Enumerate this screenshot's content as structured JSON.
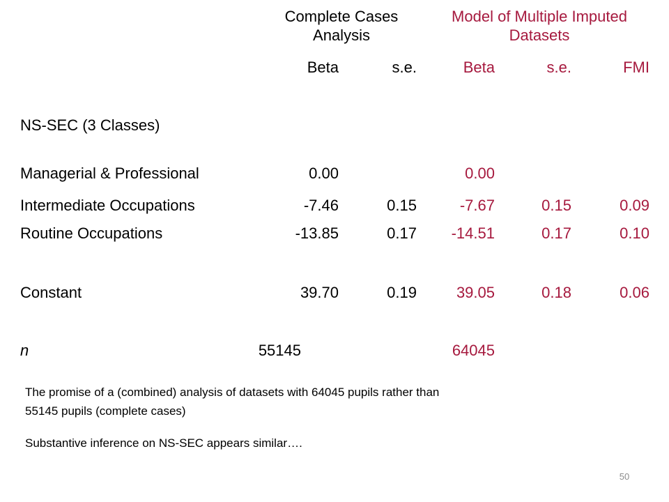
{
  "colors": {
    "text": "#000000",
    "accent": "#a6193e",
    "page_number": "#8c8c8c"
  },
  "header": {
    "group1_line1": "Complete Cases",
    "group1_line2": "Analysis",
    "group2_line1": "Model of Multiple Imputed",
    "group2_line2": "Datasets",
    "col_beta_cc": "Beta",
    "col_se_cc": "s.e.",
    "col_beta_mi": "Beta",
    "col_se_mi": "s.e.",
    "col_fmi": "FMI"
  },
  "section_label": "NS-SEC (3 Classes)",
  "rows": [
    {
      "label": "Managerial & Professional",
      "beta_cc": "0.00",
      "se_cc": "",
      "beta_mi": "0.00",
      "se_mi": "",
      "fmi": ""
    },
    {
      "label": "Intermediate Occupations",
      "beta_cc": "-7.46",
      "se_cc": "0.15",
      "beta_mi": "-7.67",
      "se_mi": "0.15",
      "fmi": "0.09"
    },
    {
      "label": "Routine Occupations",
      "beta_cc": "-13.85",
      "se_cc": "0.17",
      "beta_mi": "-14.51",
      "se_mi": "0.17",
      "fmi": "0.10"
    },
    {
      "label": "Constant",
      "beta_cc": "39.70",
      "se_cc": "0.19",
      "beta_mi": "39.05",
      "se_mi": "0.18",
      "fmi": "0.06"
    }
  ],
  "n_row": {
    "label": "n",
    "cc": "55145",
    "mi": "64045"
  },
  "notes": {
    "line1": "The promise of a (combined) analysis of datasets with 64045 pupils rather than",
    "line2": "55145 pupils (complete cases)",
    "line3": "Substantive inference on NS-SEC appears similar…."
  },
  "page_number": "50"
}
